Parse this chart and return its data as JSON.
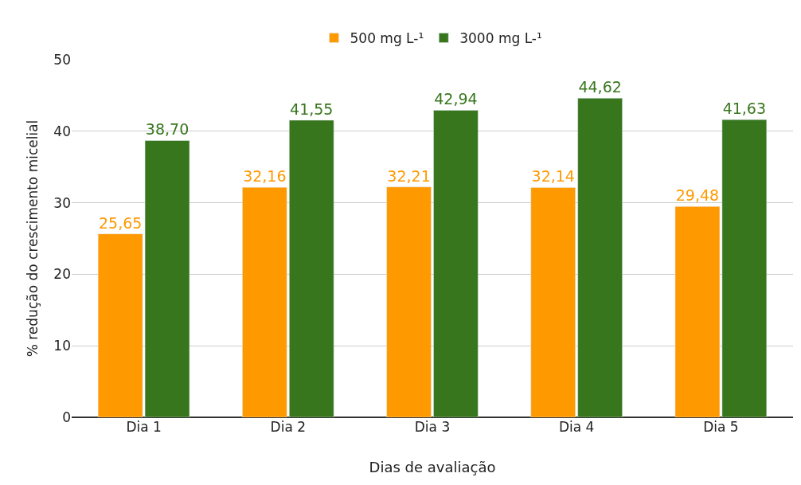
{
  "chart_data": {
    "type": "bar",
    "xlabel": "Dias de avaliação",
    "ylabel": "% redução do crescimento micelial",
    "categories": [
      "Dia 1",
      "Dia 2",
      "Dia 3",
      "Dia 4",
      "Dia 5"
    ],
    "series": [
      {
        "name": "500 mg L-¹",
        "color": "#ff9900",
        "values": [
          25.65,
          32.16,
          32.21,
          32.14,
          29.48
        ],
        "value_labels": [
          "25,65",
          "32,16",
          "32,21",
          "32,14",
          "29,48"
        ]
      },
      {
        "name": "3000 mg L-¹",
        "color": "#38761d",
        "values": [
          38.7,
          41.55,
          42.94,
          44.62,
          41.63
        ],
        "value_labels": [
          "38,70",
          "41,55",
          "42,94",
          "44,62",
          "41,63"
        ]
      }
    ],
    "ylim": [
      0,
      50
    ],
    "yticks": [
      0,
      10,
      20,
      30,
      40,
      50
    ],
    "grid": "y",
    "legend": "top"
  }
}
